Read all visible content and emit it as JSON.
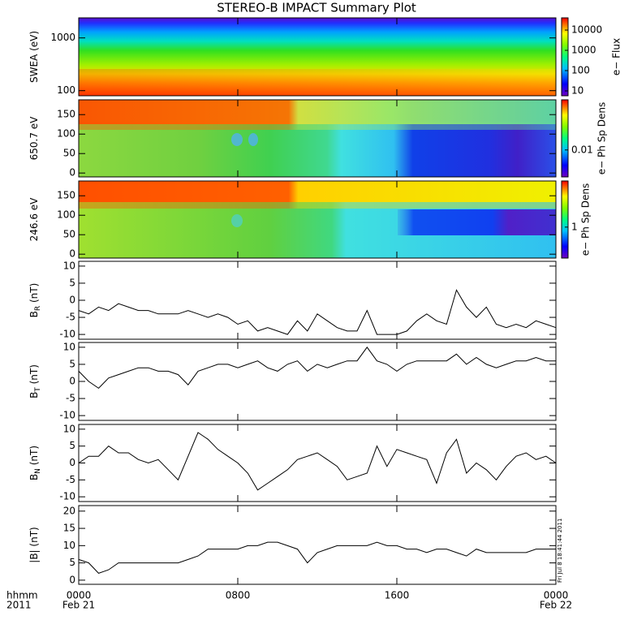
{
  "title": "STEREO-B IMPACT Summary Plot",
  "corner": [
    "hhmm",
    "2011"
  ],
  "timestamp": "Fri Jul  8 18:41:44 2011",
  "xlim": [
    0,
    24
  ],
  "xticks": [
    {
      "value": 0,
      "label": "0000"
    },
    {
      "value": 8,
      "label": "0800"
    },
    {
      "value": 16,
      "label": "1600"
    },
    {
      "value": 24,
      "label": "0000"
    }
  ],
  "date_labels": [
    {
      "value": 0,
      "label": "Feb 21"
    },
    {
      "value": 24,
      "label": "Feb 22"
    }
  ],
  "x": [
    0,
    0.5,
    1,
    1.5,
    2,
    2.5,
    3,
    3.5,
    4,
    4.5,
    5,
    5.5,
    6,
    6.5,
    7,
    7.5,
    8,
    8.5,
    9,
    9.5,
    10,
    10.5,
    11,
    11.5,
    12,
    12.5,
    13,
    13.5,
    14,
    14.5,
    15,
    15.5,
    16,
    16.5,
    17,
    17.5,
    18,
    18.5,
    19,
    19.5,
    20,
    20.5,
    21,
    21.5,
    22,
    22.5,
    23,
    23.5,
    24
  ],
  "chart_data": [
    {
      "type": "spectrogram",
      "ylabel": [
        "SWEA (eV)"
      ],
      "ylim": [
        80,
        2400
      ],
      "yscale": "log",
      "yticks": [
        100,
        1000
      ],
      "colorbar_label": "e− Flux",
      "clim": [
        5.75,
        40000
      ],
      "cticks": [
        10,
        100,
        1000,
        10000
      ]
    },
    {
      "type": "spectrogram",
      "ylabel": [
        "650.7 eV"
      ],
      "ylim": [
        -10,
        188
      ],
      "yscale": "linear",
      "yticks": [
        0,
        50,
        100,
        150
      ],
      "colorbar_label": "e− Ph Sp Dens",
      "clim": [
        0.002,
        0.2
      ],
      "cticks": [
        0.01
      ]
    },
    {
      "type": "spectrogram",
      "ylabel": [
        "246.6 eV"
      ],
      "ylim": [
        -10,
        188
      ],
      "yscale": "linear",
      "yticks": [
        0,
        50,
        100,
        150
      ],
      "colorbar_label": "e− Ph Sp Dens",
      "clim": [
        0.2,
        11
      ],
      "cticks": [
        1
      ]
    },
    {
      "type": "line",
      "ylabel": [
        "B",
        "R",
        " (nT)"
      ],
      "ylim": [
        -11.4,
        11.4
      ],
      "yscale": "linear",
      "yticks": [
        -10,
        -5,
        0,
        5,
        10
      ],
      "color": "#000000",
      "values": [
        -3,
        -4,
        -2,
        -3,
        -1,
        -2,
        -3,
        -3,
        -4,
        -4,
        -4,
        -3,
        -4,
        -5,
        -4,
        -5,
        -7,
        -6,
        -9,
        -8,
        -9,
        -10,
        -6,
        -9,
        -4,
        -6,
        -8,
        -9,
        -9,
        -3,
        -10,
        -10,
        -10,
        -9,
        -6,
        -4,
        -6,
        -7,
        3,
        -2,
        -5,
        -2,
        -7,
        -8,
        -7,
        -8,
        -6,
        -7,
        -8
      ]
    },
    {
      "type": "line",
      "ylabel": [
        "B",
        "T",
        " (nT)"
      ],
      "ylim": [
        -11.4,
        11.4
      ],
      "yscale": "linear",
      "yticks": [
        -10,
        -5,
        0,
        5,
        10
      ],
      "color": "#000000",
      "values": [
        3,
        0,
        -2,
        1,
        2,
        3,
        4,
        4,
        3,
        3,
        2,
        -1,
        3,
        4,
        5,
        5,
        4,
        5,
        6,
        4,
        3,
        5,
        6,
        3,
        5,
        4,
        5,
        6,
        6,
        10,
        6,
        5,
        3,
        5,
        6,
        6,
        6,
        6,
        8,
        5,
        7,
        5,
        4,
        5,
        6,
        6,
        7,
        6,
        6
      ]
    },
    {
      "type": "line",
      "ylabel": [
        "B",
        "N",
        " (nT)"
      ],
      "ylim": [
        -11.4,
        11.4
      ],
      "yscale": "linear",
      "yticks": [
        -10,
        -5,
        0,
        5,
        10
      ],
      "color": "#000000",
      "values": [
        0,
        2,
        2,
        5,
        3,
        3,
        1,
        0,
        1,
        -2,
        -5,
        2,
        9,
        7,
        4,
        2,
        0,
        -3,
        -8,
        -6,
        -4,
        -2,
        1,
        2,
        3,
        1,
        -1,
        -5,
        -4,
        -3,
        5,
        -1,
        4,
        3,
        2,
        1,
        -6,
        3,
        7,
        -3,
        0,
        -2,
        -5,
        -1,
        2,
        3,
        1,
        2,
        0
      ]
    },
    {
      "type": "line",
      "ylabel": [
        "|B| (nT)"
      ],
      "ylim": [
        -1.2,
        21.6
      ],
      "yscale": "linear",
      "yticks": [
        0,
        5,
        10,
        15,
        20
      ],
      "color": "#000000",
      "values": [
        6,
        5,
        2,
        3,
        5,
        5,
        5,
        5,
        5,
        5,
        5,
        6,
        7,
        9,
        9,
        9,
        9,
        10,
        10,
        11,
        11,
        10,
        9,
        5,
        8,
        9,
        10,
        10,
        10,
        10,
        11,
        10,
        10,
        9,
        9,
        8,
        9,
        9,
        8,
        7,
        9,
        8,
        8,
        8,
        8,
        8,
        9,
        9,
        9
      ]
    }
  ]
}
